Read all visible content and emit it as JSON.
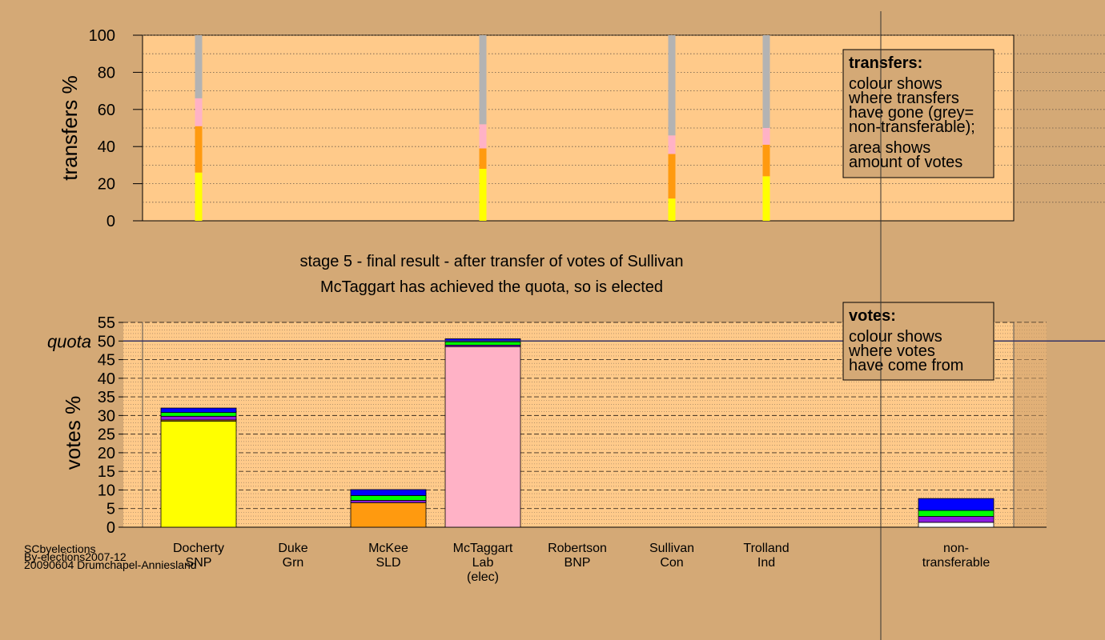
{
  "colors": {
    "background": "#d4a976",
    "panel": "#ffca8a",
    "legend_box": "#d4a976",
    "parties": {
      "SNP": "#ffff00",
      "SLD": "#ff9a0f",
      "Lab": "#ffb2c6",
      "Grn": "#00ff00",
      "BNP": "#8c1bdf",
      "Con": "#0000ff",
      "Ind": "#2e8b57",
      "non-transferable": "#b3b3b3",
      "exhausted": "#ffffff"
    }
  },
  "footer": {
    "line1": "SCbyelections",
    "line2": "By-elections2007-12",
    "line3": "20090604 Drumchapel-Anniesland"
  },
  "captions": {
    "stage": "stage 5 - final result - after transfer of votes of Sullivan",
    "result": "McTaggart has achieved the quota, so is elected"
  },
  "legend_transfers": {
    "title": "transfers:",
    "lines": [
      "colour shows",
      "where transfers",
      "have gone (grey=",
      "non-transferable);"
    ],
    "lines2": [
      "area shows",
      "amount of votes"
    ]
  },
  "legend_votes": {
    "title": "votes:",
    "lines": [
      "colour shows",
      "where votes",
      "have come from"
    ]
  },
  "chart_data": [
    {
      "type": "bar",
      "name": "transfers",
      "ylabel": "transfers %",
      "ylim": [
        0,
        100
      ],
      "yticks": [
        0,
        20,
        40,
        60,
        80,
        100
      ],
      "stacks": [
        {
          "candidate": "Docherty",
          "segments": [
            {
              "party": "SNP",
              "value": 26
            },
            {
              "party": "SLD",
              "value": 25
            },
            {
              "party": "Lab",
              "value": 15
            },
            {
              "party": "non-transferable",
              "value": 34
            }
          ]
        },
        {
          "candidate": "McTaggart",
          "segments": [
            {
              "party": "SNP",
              "value": 28
            },
            {
              "party": "SLD",
              "value": 11
            },
            {
              "party": "Lab",
              "value": 13
            },
            {
              "party": "non-transferable",
              "value": 48
            }
          ]
        },
        {
          "candidate": "Sullivan",
          "segments": [
            {
              "party": "SNP",
              "value": 12
            },
            {
              "party": "SLD",
              "value": 24
            },
            {
              "party": "Lab",
              "value": 10
            },
            {
              "party": "non-transferable",
              "value": 54
            }
          ]
        },
        {
          "candidate": "Trolland",
          "segments": [
            {
              "party": "SNP",
              "value": 24
            },
            {
              "party": "SLD",
              "value": 17
            },
            {
              "party": "Lab",
              "value": 9
            },
            {
              "party": "non-transferable",
              "value": 50
            }
          ]
        }
      ]
    },
    {
      "type": "bar",
      "name": "votes",
      "ylabel": "votes %",
      "ylim": [
        0,
        55
      ],
      "yticks": [
        0,
        5,
        10,
        15,
        20,
        25,
        30,
        35,
        40,
        45,
        50,
        55
      ],
      "quota": 50,
      "quota_label": "quota",
      "categories": [
        {
          "name": "Docherty",
          "party": "SNP",
          "extra": ""
        },
        {
          "name": "Duke",
          "party": "Grn",
          "extra": ""
        },
        {
          "name": "McKee",
          "party": "SLD",
          "extra": ""
        },
        {
          "name": "McTaggart",
          "party": "Lab",
          "extra": "(elec)"
        },
        {
          "name": "Robertson",
          "party": "BNP",
          "extra": ""
        },
        {
          "name": "Sullivan",
          "party": "Con",
          "extra": ""
        },
        {
          "name": "Trolland",
          "party": "Ind",
          "extra": ""
        },
        {
          "name": "non-",
          "party": "transferable",
          "extra": ""
        }
      ],
      "stacks": [
        [
          {
            "party": "SNP",
            "value": 28.5
          },
          {
            "party": "SLD",
            "value": 0.3
          },
          {
            "party": "BNP",
            "value": 1.0
          },
          {
            "party": "Grn",
            "value": 1.0
          },
          {
            "party": "Con",
            "value": 1.2
          }
        ],
        [],
        [
          {
            "party": "SLD",
            "value": 6.6
          },
          {
            "party": "BNP",
            "value": 0.6
          },
          {
            "party": "Grn",
            "value": 1.3
          },
          {
            "party": "Con",
            "value": 1.6
          }
        ],
        [
          {
            "party": "Lab",
            "value": 48.5
          },
          {
            "party": "BNP",
            "value": 0.4
          },
          {
            "party": "Grn",
            "value": 0.9
          },
          {
            "party": "Con",
            "value": 0.8
          }
        ],
        [],
        [],
        [],
        [
          {
            "party": "exhausted",
            "value": 1.3
          },
          {
            "party": "BNP",
            "value": 1.6
          },
          {
            "party": "Grn",
            "value": 1.6
          },
          {
            "party": "Con",
            "value": 3.2
          }
        ]
      ]
    }
  ]
}
